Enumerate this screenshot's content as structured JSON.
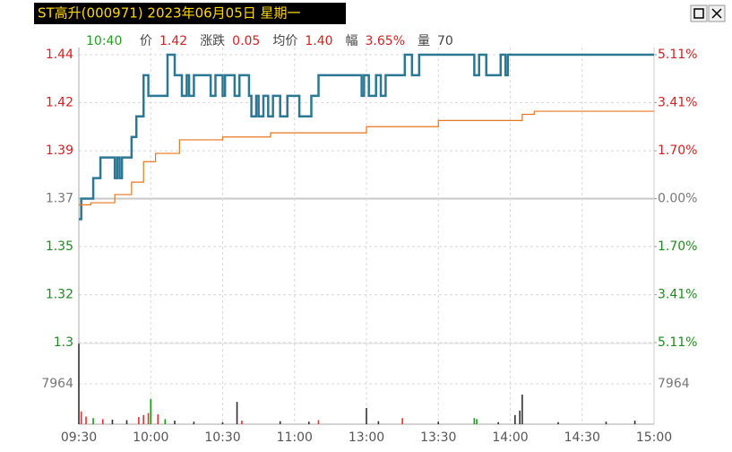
{
  "header": {
    "title": "ST高升(000971) 2023年06月05日 星期一",
    "time": "10:40",
    "quote": [
      {
        "label": "价",
        "value": "1.42"
      },
      {
        "label": "涨跌",
        "value": "0.05"
      },
      {
        "label": "均价",
        "value": "1.40"
      },
      {
        "label": "幅",
        "value": "3.65%"
      },
      {
        "label": "量",
        "value": "70"
      }
    ]
  },
  "chart_data": [
    {
      "type": "line",
      "xlim": [
        0,
        240
      ],
      "ylim": [
        1.3,
        1.44
      ],
      "y2lim": [
        -5.11,
        5.11
      ],
      "yticks": [
        1.44,
        {
          "value": 1.4167,
          "label": "1.42"
        },
        {
          "value": 1.3933,
          "label": "1.39"
        },
        1.37,
        {
          "value": 1.3467,
          "label": "1.35"
        },
        {
          "value": 1.3233,
          "label": "1.32"
        },
        1.3
      ],
      "y2ticks": [
        {
          "value": 5.11,
          "label": "5.11%"
        },
        {
          "value": 3.41,
          "label": "3.41%"
        },
        {
          "value": 1.7,
          "label": "1.70%"
        },
        {
          "value": 0,
          "label": "0.00%"
        },
        {
          "value": -1.7,
          "label": "1.70%"
        },
        {
          "value": -3.41,
          "label": "3.41%"
        },
        {
          "value": -5.11,
          "label": "5.11%"
        }
      ],
      "grid": true,
      "series": [
        {
          "color": "#2b7894",
          "x": [
            0,
            1,
            6,
            9,
            15,
            16,
            17,
            18,
            22,
            24,
            27,
            29,
            37,
            40,
            43,
            45,
            46,
            48,
            53,
            55,
            57,
            60,
            61,
            65,
            67,
            71,
            72,
            74,
            75,
            77,
            79,
            81,
            84,
            87,
            92,
            97,
            100,
            114,
            118,
            119,
            121,
            124,
            126,
            128,
            136,
            139,
            142,
            165,
            167,
            170,
            176,
            178,
            179,
            240
          ],
          "values": [
            1.36,
            1.37,
            1.38,
            1.39,
            1.38,
            1.39,
            1.38,
            1.39,
            1.4,
            1.41,
            1.43,
            1.42,
            1.44,
            1.43,
            1.42,
            1.43,
            1.42,
            1.43,
            1.43,
            1.42,
            1.43,
            1.42,
            1.43,
            1.42,
            1.43,
            1.42,
            1.41,
            1.42,
            1.41,
            1.42,
            1.41,
            1.42,
            1.41,
            1.42,
            1.41,
            1.42,
            1.43,
            1.43,
            1.42,
            1.43,
            1.42,
            1.43,
            1.42,
            1.43,
            1.44,
            1.43,
            1.44,
            1.43,
            1.44,
            1.43,
            1.44,
            1.43,
            1.44,
            1.44
          ]
        },
        {
          "color": "#e8761e",
          "x": [
            0,
            5,
            15,
            22,
            27,
            32,
            42,
            60,
            80,
            120,
            150,
            185,
            190,
            240
          ],
          "values": [
            1.367,
            1.368,
            1.372,
            1.378,
            1.388,
            1.392,
            1.3986,
            1.4,
            1.402,
            1.405,
            1.408,
            1.411,
            1.4125,
            1.4125
          ]
        }
      ]
    },
    {
      "type": "bar",
      "xlim": [
        0,
        240
      ],
      "ylim": [
        0,
        15928
      ],
      "yticks": [
        7964
      ],
      "xticks": [
        {
          "value": 0,
          "label": "09:30"
        },
        {
          "value": 30,
          "label": "10:00"
        },
        {
          "value": 60,
          "label": "10:30"
        },
        {
          "value": 90,
          "label": "11:00"
        },
        {
          "value": 120,
          "label": "13:00"
        },
        {
          "value": 150,
          "label": "13:30"
        },
        {
          "value": 180,
          "label": "14:00"
        },
        {
          "value": 210,
          "label": "14:30"
        },
        {
          "value": 240,
          "label": "15:00"
        }
      ],
      "x": [
        0,
        1,
        3,
        6,
        10,
        14,
        20,
        25,
        27,
        29,
        30,
        33,
        36,
        40,
        48,
        60,
        66,
        68,
        84,
        96,
        100,
        120,
        125,
        135,
        150,
        165,
        166,
        175,
        182,
        184,
        185,
        200,
        220,
        232
      ],
      "values": [
        15900,
        2500,
        1500,
        1200,
        1000,
        900,
        800,
        1400,
        1800,
        2200,
        4955,
        1947,
        1000,
        700,
        500,
        400,
        4400,
        700,
        600,
        500,
        800,
        3186,
        600,
        1200,
        500,
        1200,
        1000,
        400,
        1800,
        2700,
        5840,
        400,
        500,
        700
      ],
      "colors": [
        "#303030",
        "#e03030",
        "#e03030",
        "#10a010",
        "#e03030",
        "#303030",
        "#303030",
        "#e03030",
        "#e03030",
        "#e03030",
        "#10a010",
        "#e03030",
        "#10a010",
        "#303030",
        "#303030",
        "#303030",
        "#303030",
        "#e03030",
        "#303030",
        "#303030",
        "#e03030",
        "#303030",
        "#303030",
        "#e03030",
        "#303030",
        "#10a010",
        "#10a010",
        "#303030",
        "#303030",
        "#303030",
        "#303030",
        "#303030",
        "#303030",
        "#303030"
      ]
    }
  ]
}
